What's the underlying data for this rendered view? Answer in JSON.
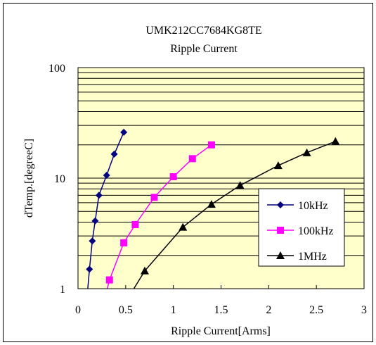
{
  "chart_data": {
    "type": "line",
    "title": "UMK212CC7684KG8TE",
    "subtitle": "Ripple Current",
    "xlabel": "Ripple Current[Arms]",
    "ylabel": "dTemp.[degreeC]",
    "xlim": [
      0,
      3
    ],
    "ylim": [
      1,
      100
    ],
    "yscale": "log",
    "xticks": [
      "0",
      "0.5",
      "1",
      "1.5",
      "2",
      "2.5",
      "3"
    ],
    "yticks": [
      "1",
      "10",
      "100"
    ],
    "xtick_values": [
      0,
      0.5,
      1,
      1.5,
      2,
      2.5,
      3
    ],
    "ytick_values": [
      1,
      10,
      100
    ],
    "grid": "horizontal",
    "legend_position": "right",
    "plot_background": "#ffffcc",
    "series": [
      {
        "name": "10kHz",
        "color": "#000080",
        "marker": "diamond",
        "points": [
          [
            0.1,
            0.95
          ],
          [
            0.12,
            1.5
          ],
          [
            0.15,
            2.7
          ],
          [
            0.18,
            4.1
          ],
          [
            0.22,
            7.0
          ],
          [
            0.3,
            10.6
          ],
          [
            0.38,
            16.5
          ],
          [
            0.48,
            26.0
          ]
        ],
        "marker_points": [
          [
            0.12,
            1.5
          ],
          [
            0.15,
            2.7
          ],
          [
            0.18,
            4.1
          ],
          [
            0.22,
            7.0
          ],
          [
            0.3,
            10.6
          ],
          [
            0.38,
            16.5
          ],
          [
            0.48,
            26.0
          ]
        ]
      },
      {
        "name": "100kHz",
        "color": "#ff00ff",
        "marker": "square",
        "points": [
          [
            0.3,
            0.95
          ],
          [
            0.33,
            1.2
          ],
          [
            0.48,
            2.6
          ],
          [
            0.6,
            3.8
          ],
          [
            0.8,
            6.7
          ],
          [
            1.0,
            10.3
          ],
          [
            1.2,
            15.0
          ],
          [
            1.4,
            20.0
          ]
        ],
        "marker_points": [
          [
            0.33,
            1.2
          ],
          [
            0.48,
            2.6
          ],
          [
            0.6,
            3.8
          ],
          [
            0.8,
            6.7
          ],
          [
            1.0,
            10.3
          ],
          [
            1.2,
            15.0
          ],
          [
            1.4,
            20.0
          ]
        ]
      },
      {
        "name": "1MHz",
        "color": "#000000",
        "marker": "triangle",
        "points": [
          [
            0.57,
            0.95
          ],
          [
            0.7,
            1.45
          ],
          [
            1.1,
            3.6
          ],
          [
            1.4,
            5.8
          ],
          [
            1.7,
            8.6
          ],
          [
            2.1,
            13.0
          ],
          [
            2.4,
            17.0
          ],
          [
            2.7,
            21.5
          ]
        ],
        "marker_points": [
          [
            0.7,
            1.45
          ],
          [
            1.1,
            3.6
          ],
          [
            1.4,
            5.8
          ],
          [
            1.7,
            8.6
          ],
          [
            2.1,
            13.0
          ],
          [
            2.4,
            17.0
          ],
          [
            2.7,
            21.5
          ]
        ]
      }
    ]
  }
}
